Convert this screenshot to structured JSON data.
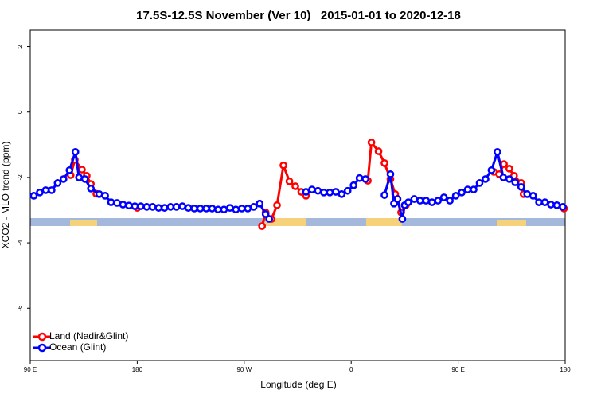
{
  "chart_data": {
    "type": "line",
    "title": "17.5S-12.5S November (Ver 10)   2015-01-01 to 2020-12-18",
    "x_label": "Longitude (deg E)",
    "y_label": "XCO2 - MLO trend (ppm)",
    "xlim": [
      90,
      540
    ],
    "xticks": [
      {
        "value": 90,
        "label": "90 E"
      },
      180,
      {
        "value": 270,
        "label": "90 W"
      },
      {
        "value": 360,
        "label": "0"
      },
      {
        "value": 450,
        "label": "90 E"
      },
      {
        "value": 540,
        "label": "180"
      }
    ],
    "ylim": [
      -7.6,
      2.5
    ],
    "yticks": [
      2,
      0,
      -2,
      -4,
      -6
    ],
    "legend": "lower left",
    "series": [
      {
        "name": "Land (Nadir&Glint)",
        "color": "#ff0000",
        "x": [
          124,
          127.5,
          133.5,
          137.5,
          141,
          145.6,
          150,
          180,
          185,
          285,
          288,
          293,
          297.6,
          303,
          308,
          313,
          318,
          322,
          330,
          374,
          377,
          383,
          388,
          393,
          397,
          402,
          406,
          410,
          480,
          484.5,
          488.5,
          493,
          497,
          503,
          505,
          510,
          539
        ],
        "values": [
          -1.93,
          -1.46,
          -1.76,
          -1.95,
          -2.2,
          -2.5,
          null,
          -2.93,
          null,
          -3.49,
          -3.07,
          -3.27,
          -2.85,
          -1.63,
          -2.12,
          -2.27,
          -2.44,
          -2.56,
          null,
          -2.1,
          -0.93,
          -1.2,
          -1.56,
          -2.05,
          -2.51,
          -3.07,
          -2.85,
          null,
          -1.83,
          -1.9,
          -1.59,
          -1.73,
          -1.95,
          -2.17,
          -2.51,
          null,
          -2.95
        ]
      },
      {
        "name": "Ocean (Glint)",
        "color": "#0000ff",
        "x": [
          93,
          98,
          103,
          108,
          113,
          118,
          123,
          128,
          131,
          136,
          141,
          148,
          153,
          158,
          163,
          168,
          173,
          178,
          183,
          188,
          193,
          198,
          203,
          208,
          213,
          218,
          223,
          228,
          233,
          238,
          243,
          248,
          253,
          258,
          263,
          268,
          273,
          278,
          283,
          288,
          291,
          300,
          322,
          327,
          332,
          337,
          342,
          347,
          352,
          357,
          362,
          367,
          372,
          380,
          388,
          393,
          396,
          399,
          403,
          405,
          408,
          413,
          418,
          423,
          428,
          433,
          438,
          443,
          448,
          453,
          458,
          463,
          468,
          473,
          478,
          483,
          488,
          493,
          498,
          503,
          508,
          513,
          518,
          523,
          528,
          533,
          538
        ],
        "values": [
          -2.56,
          -2.46,
          -2.39,
          -2.39,
          -2.17,
          -2.05,
          -1.78,
          -1.22,
          -2.0,
          -2.05,
          -2.34,
          -2.51,
          -2.56,
          -2.76,
          -2.78,
          -2.83,
          -2.86,
          -2.88,
          -2.88,
          -2.9,
          -2.9,
          -2.93,
          -2.93,
          -2.9,
          -2.9,
          -2.88,
          -2.93,
          -2.95,
          -2.95,
          -2.95,
          -2.95,
          -2.98,
          -2.98,
          -2.93,
          -2.98,
          -2.95,
          -2.95,
          -2.9,
          -2.8,
          -3.12,
          -3.27,
          null,
          -2.44,
          -2.37,
          -2.41,
          -2.46,
          -2.46,
          -2.44,
          -2.51,
          -2.41,
          -2.24,
          -2.02,
          -2.05,
          null,
          -2.54,
          -1.9,
          -2.8,
          -2.66,
          -3.27,
          -2.85,
          -2.76,
          -2.66,
          -2.71,
          -2.71,
          -2.76,
          -2.71,
          -2.61,
          -2.71,
          -2.56,
          -2.46,
          -2.37,
          -2.37,
          -2.17,
          -2.05,
          -1.78,
          -1.22,
          -2.0,
          -2.05,
          -2.15,
          -2.29,
          -2.51,
          -2.56,
          -2.76,
          -2.76,
          -2.83,
          -2.85,
          -2.9
        ]
      }
    ]
  }
}
